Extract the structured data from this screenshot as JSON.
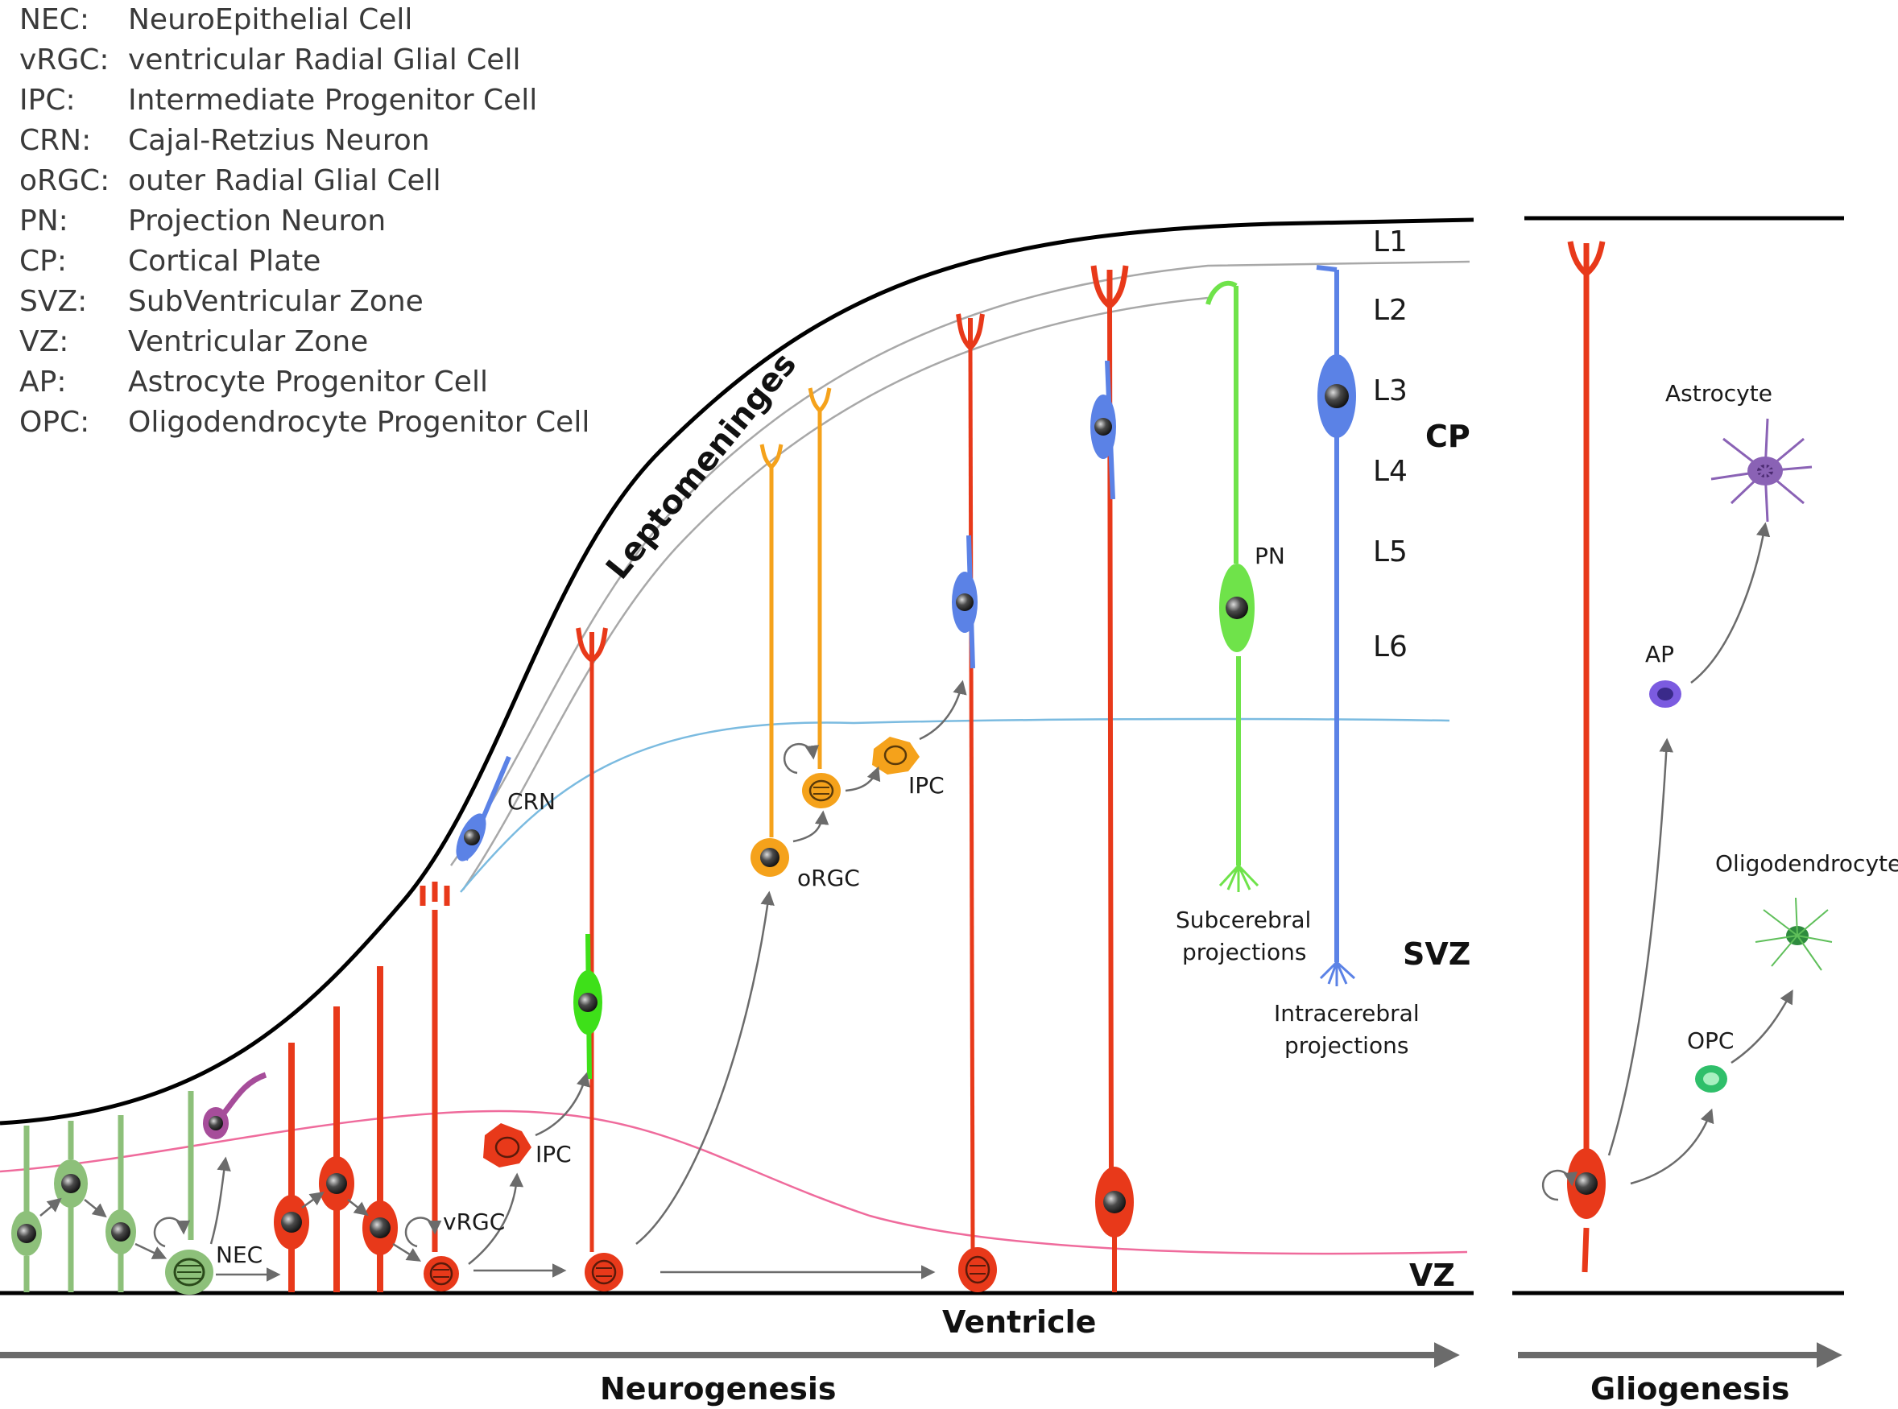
{
  "legend": [
    {
      "abbr": "NEC:",
      "full": "NeuroEpithelial Cell"
    },
    {
      "abbr": "vRGC:",
      "full": "ventricular Radial Glial Cell"
    },
    {
      "abbr": "IPC:",
      "full": "Intermediate Progenitor Cell"
    },
    {
      "abbr": "CRN:",
      "full": "Cajal-Retzius Neuron"
    },
    {
      "abbr": "oRGC:",
      "full": "outer Radial Glial Cell"
    },
    {
      "abbr": "PN:",
      "full": "Projection Neuron"
    },
    {
      "abbr": "CP:",
      "full": "Cortical Plate"
    },
    {
      "abbr": "SVZ:",
      "full": "SubVentricular Zone"
    },
    {
      "abbr": "VZ:",
      "full": "Ventricular Zone"
    },
    {
      "abbr": "AP:",
      "full": "Astrocyte Progenitor Cell"
    },
    {
      "abbr": "OPC:",
      "full": "Oligodendrocyte Progenitor Cell"
    }
  ],
  "layers": [
    "L1",
    "L2",
    "L3",
    "L4",
    "L5",
    "L6"
  ],
  "zones": {
    "cp": "CP",
    "svz": "SVZ",
    "vz": "VZ"
  },
  "regions": {
    "leptomeninges": "Leptomeninges",
    "ventricle": "Ventricle"
  },
  "cell_labels": {
    "nec": "NEC",
    "vrgc": "vRGC",
    "ipc_lower": "IPC",
    "ipc_upper": "IPC",
    "crn": "CRN",
    "orgc": "oRGC",
    "pn": "PN",
    "subcerebral_1": "Subcerebral",
    "subcerebral_2": "projections",
    "intracerebral_1": "Intracerebral",
    "intracerebral_2": "projections",
    "astrocyte": "Astrocyte",
    "ap": "AP",
    "opc": "OPC",
    "oligodendrocyte": "Oligodendrocyte"
  },
  "timeline": {
    "neurogenesis": "Neurogenesis",
    "gliogenesis": "Gliogenesis"
  },
  "colors": {
    "nec": "#8dc07a",
    "rgc": "#e8391a",
    "orgc": "#f5a21b",
    "pn": "#6fe34a",
    "deep_neuron": "#5b82e6",
    "crn": "#5b82e6",
    "astrocyte": "#8a62b5",
    "ap": "#7b5be0",
    "opc": "#2fbf6a",
    "oligodendrocyte": "#2e8b3e",
    "svz_line": "#ef6b9c",
    "cp_line": "#7bbbe0",
    "arrow": "#6b6b6b"
  }
}
